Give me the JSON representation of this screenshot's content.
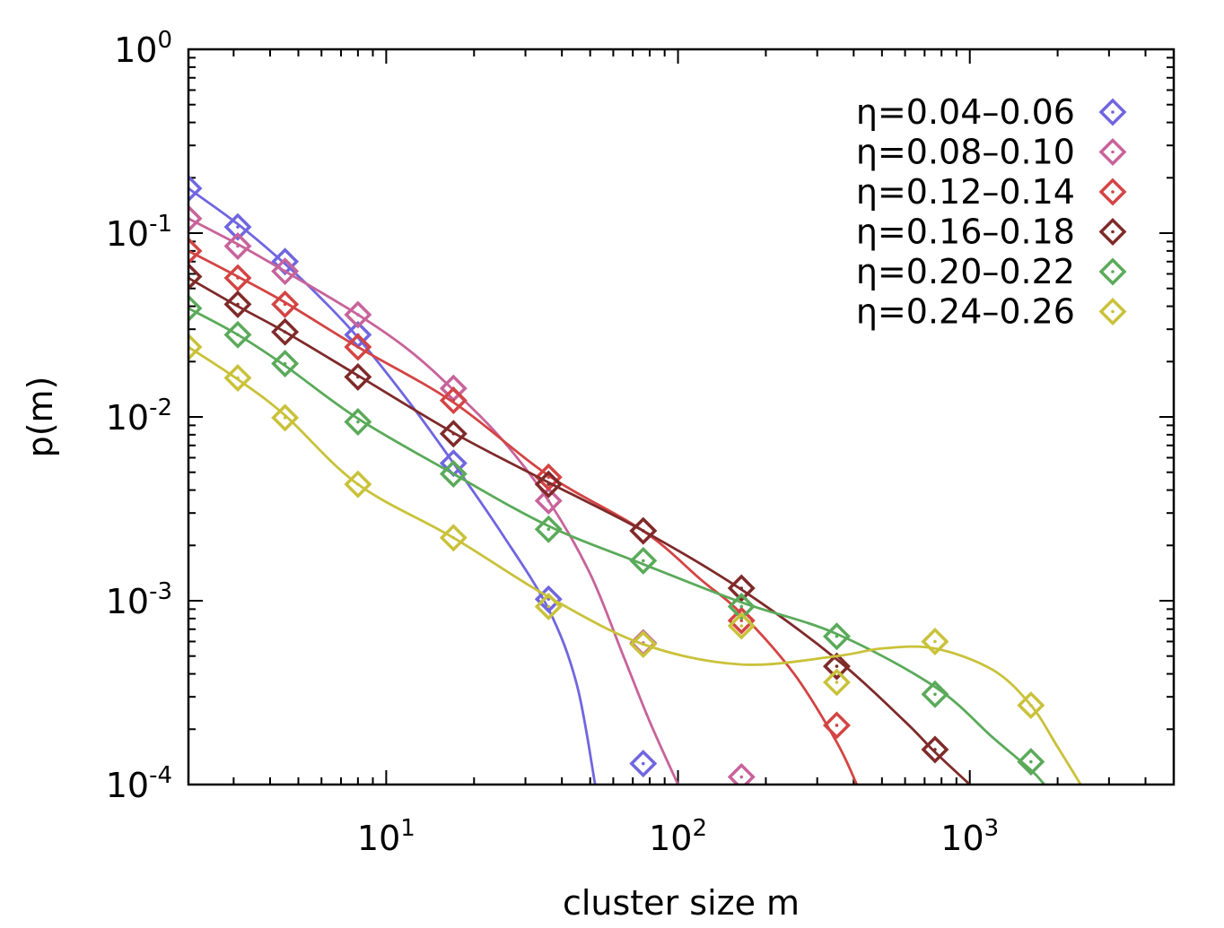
{
  "chart_data": {
    "type": "scatter",
    "xlabel": "cluster size m",
    "ylabel": "p(m)",
    "xscale": "log",
    "yscale": "log",
    "xlim": [
      2.1,
      5000
    ],
    "ylim": [
      0.0001,
      1
    ],
    "x_ticks": [
      {
        "value": 10,
        "base": "10",
        "exp": "1"
      },
      {
        "value": 100,
        "base": "10",
        "exp": "2"
      },
      {
        "value": 1000,
        "base": "10",
        "exp": "3"
      }
    ],
    "y_ticks": [
      {
        "value": 1,
        "base": "10",
        "exp": "0"
      },
      {
        "value": 0.1,
        "base": "10",
        "exp": "-1"
      },
      {
        "value": 0.01,
        "base": "10",
        "exp": "-2"
      },
      {
        "value": 0.001,
        "base": "10",
        "exp": "-3"
      },
      {
        "value": 0.0001,
        "base": "10",
        "exp": "-4"
      }
    ],
    "legend_position": "top-right",
    "grid": false,
    "marker": "diamond",
    "series": [
      {
        "name": "η=0.04–0.06",
        "color": "#7066e0",
        "points": [
          [
            2.1,
            0.175
          ],
          [
            3.1,
            0.108
          ],
          [
            4.5,
            0.07
          ],
          [
            8.0,
            0.028
          ],
          [
            17,
            0.0056
          ],
          [
            36,
            0.00102
          ],
          [
            76,
            0.00013
          ]
        ],
        "fit": [
          [
            2.1,
            0.175
          ],
          [
            3.1,
            0.112
          ],
          [
            4.5,
            0.068
          ],
          [
            6,
            0.044
          ],
          [
            8,
            0.027
          ],
          [
            12,
            0.012
          ],
          [
            17,
            0.0056
          ],
          [
            25,
            0.0023
          ],
          [
            36,
            0.0009
          ],
          [
            45,
            0.00035
          ],
          [
            52,
            0.0001
          ]
        ]
      },
      {
        "name": "η=0.08–0.10",
        "color": "#c8639a",
        "points": [
          [
            2.1,
            0.12
          ],
          [
            3.1,
            0.085
          ],
          [
            4.5,
            0.062
          ],
          [
            8.0,
            0.036
          ],
          [
            17,
            0.0143
          ],
          [
            36,
            0.0035
          ],
          [
            76,
            0.00059
          ],
          [
            165,
            0.00011
          ]
        ],
        "fit": [
          [
            2.1,
            0.12
          ],
          [
            3.1,
            0.087
          ],
          [
            4.5,
            0.062
          ],
          [
            8,
            0.036
          ],
          [
            12,
            0.023
          ],
          [
            17,
            0.014
          ],
          [
            25,
            0.0075
          ],
          [
            36,
            0.0035
          ],
          [
            50,
            0.0014
          ],
          [
            65,
            0.0005
          ],
          [
            80,
            0.00022
          ],
          [
            100,
            0.0001
          ]
        ]
      },
      {
        "name": "η=0.12–0.14",
        "color": "#d44444",
        "points": [
          [
            2.1,
            0.08
          ],
          [
            3.1,
            0.057
          ],
          [
            4.5,
            0.041
          ],
          [
            8.0,
            0.024
          ],
          [
            17,
            0.0123
          ],
          [
            36,
            0.0047
          ],
          [
            76,
            0.0024
          ],
          [
            165,
            0.00078
          ],
          [
            350,
            0.00021
          ]
        ],
        "fit": [
          [
            2.1,
            0.08
          ],
          [
            3.1,
            0.058
          ],
          [
            4.5,
            0.042
          ],
          [
            8,
            0.024
          ],
          [
            17,
            0.012
          ],
          [
            36,
            0.0048
          ],
          [
            76,
            0.0024
          ],
          [
            120,
            0.0013
          ],
          [
            165,
            0.00085
          ],
          [
            250,
            0.0004
          ],
          [
            350,
            0.00017
          ],
          [
            410,
            0.0001
          ]
        ]
      },
      {
        "name": "η=0.16–0.18",
        "color": "#7f2a2a",
        "points": [
          [
            2.1,
            0.058
          ],
          [
            3.1,
            0.041
          ],
          [
            4.5,
            0.029
          ],
          [
            8.0,
            0.0165
          ],
          [
            17,
            0.0081
          ],
          [
            36,
            0.0043
          ],
          [
            76,
            0.0024
          ],
          [
            165,
            0.00117
          ],
          [
            350,
            0.00044
          ],
          [
            760,
            0.000155
          ]
        ],
        "fit": [
          [
            2.1,
            0.057
          ],
          [
            3.1,
            0.04
          ],
          [
            4.5,
            0.029
          ],
          [
            8,
            0.0168
          ],
          [
            17,
            0.0082
          ],
          [
            36,
            0.0044
          ],
          [
            76,
            0.0024
          ],
          [
            165,
            0.00115
          ],
          [
            350,
            0.00048
          ],
          [
            600,
            0.00022
          ],
          [
            760,
            0.00015
          ],
          [
            1000,
            0.0001
          ]
        ]
      },
      {
        "name": "η=0.20–0.22",
        "color": "#5aaa5a",
        "points": [
          [
            2.1,
            0.039
          ],
          [
            3.1,
            0.028
          ],
          [
            4.5,
            0.0195
          ],
          [
            8.0,
            0.0094
          ],
          [
            17,
            0.0049
          ],
          [
            36,
            0.00245
          ],
          [
            76,
            0.00165
          ],
          [
            165,
            0.00093
          ],
          [
            350,
            0.00064
          ],
          [
            760,
            0.00031
          ],
          [
            1620,
            0.000133
          ]
        ],
        "fit": [
          [
            2.1,
            0.039
          ],
          [
            3.1,
            0.028
          ],
          [
            4.5,
            0.019
          ],
          [
            8,
            0.0098
          ],
          [
            17,
            0.0049
          ],
          [
            36,
            0.00255
          ],
          [
            76,
            0.00158
          ],
          [
            165,
            0.00098
          ],
          [
            350,
            0.00066
          ],
          [
            760,
            0.00034
          ],
          [
            1200,
            0.00018
          ],
          [
            1620,
            0.00012
          ],
          [
            1800,
            0.0001
          ]
        ]
      },
      {
        "name": "η=0.24–0.26",
        "color": "#c9c23a",
        "points": [
          [
            2.1,
            0.024
          ],
          [
            3.1,
            0.0163
          ],
          [
            4.5,
            0.0099
          ],
          [
            8.0,
            0.0043
          ],
          [
            17,
            0.0022
          ],
          [
            36,
            0.00093
          ],
          [
            76,
            0.00058
          ],
          [
            165,
            0.00073
          ],
          [
            350,
            0.00036
          ],
          [
            760,
            0.0006
          ],
          [
            1620,
            0.00027
          ]
        ],
        "fit": [
          [
            2.1,
            0.024
          ],
          [
            3.1,
            0.016
          ],
          [
            4.5,
            0.0102
          ],
          [
            8,
            0.0043
          ],
          [
            17,
            0.0022
          ],
          [
            36,
            0.00105
          ],
          [
            76,
            0.00058
          ],
          [
            165,
            0.00045
          ],
          [
            350,
            0.0005
          ],
          [
            500,
            0.00055
          ],
          [
            760,
            0.00055
          ],
          [
            1200,
            0.00042
          ],
          [
            1620,
            0.00027
          ],
          [
            2000,
            0.00016
          ],
          [
            2400,
            0.0001
          ]
        ]
      }
    ]
  }
}
